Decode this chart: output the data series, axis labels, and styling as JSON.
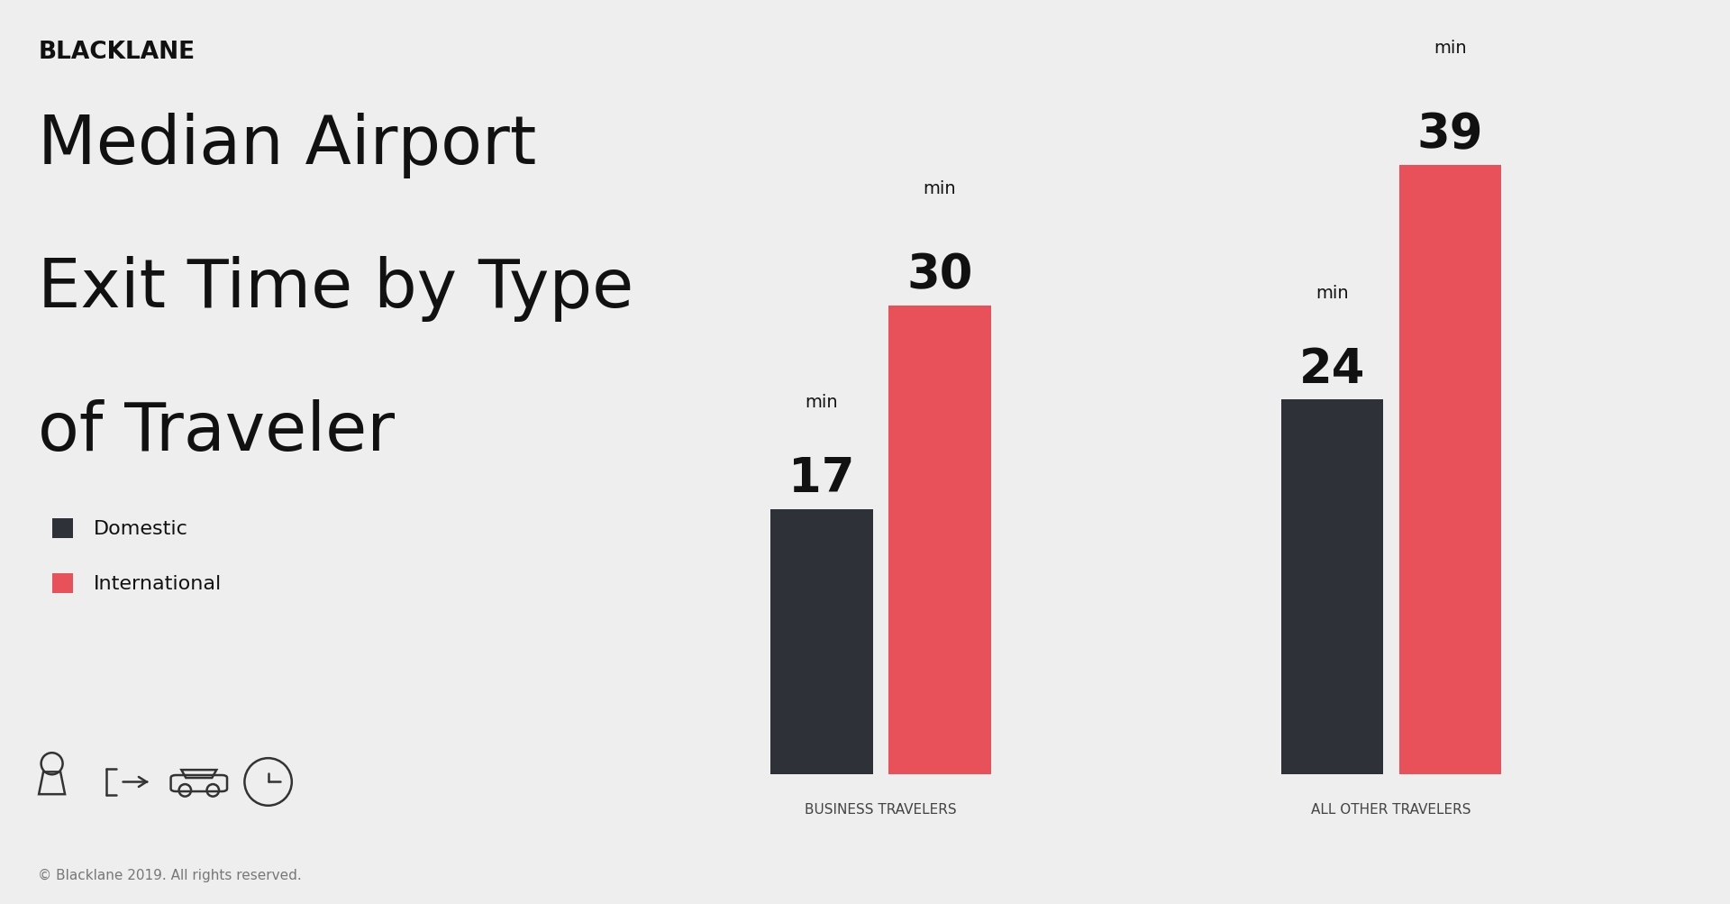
{
  "background_color": "#eeeeee",
  "brand": "BLACKLANE",
  "title_line1": "Median Airport",
  "title_line2": "Exit Time by Type",
  "title_line3": "of Traveler",
  "categories": [
    "BUSINESS TRAVELERS",
    "ALL OTHER TRAVELERS"
  ],
  "domestic_values": [
    17,
    24
  ],
  "international_values": [
    30,
    39
  ],
  "domestic_color": "#2e3138",
  "international_color": "#e8515a",
  "legend_domestic": "Domestic",
  "legend_international": "International",
  "copyright": "© Blacklane 2019. All rights reserved.",
  "bar_value_fontsize": 38,
  "bar_unit_fontsize": 14,
  "category_label_fontsize": 11,
  "title_fontsize": 54,
  "brand_fontsize": 19,
  "legend_fontsize": 16,
  "ylim_max": 45,
  "bar_width": 0.32,
  "bar_gap": 0.05
}
